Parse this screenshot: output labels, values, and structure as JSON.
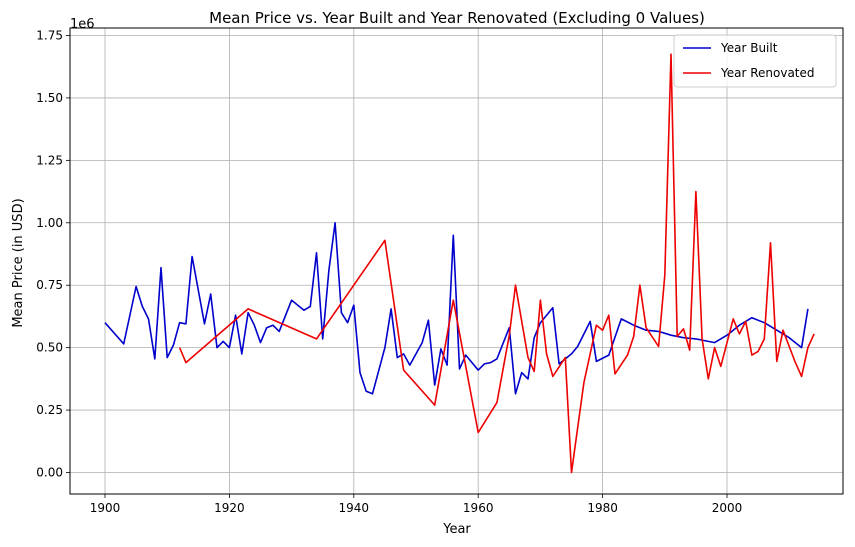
{
  "chart_data": {
    "type": "line",
    "title": "Mean Price vs. Year Built and Year Renovated (Excluding 0 Values)",
    "xlabel": "Year",
    "ylabel": "Mean Price (in USD)",
    "y_offset_label": "1e6",
    "xlim": [
      1900,
      2015
    ],
    "ylim": [
      0,
      1750000
    ],
    "x_ticks": [
      1900,
      1920,
      1940,
      1960,
      1980,
      2000
    ],
    "x_tick_labels": [
      "1900",
      "1920",
      "1940",
      "1960",
      "1980",
      "2000"
    ],
    "y_ticks": [
      0,
      250000,
      500000,
      750000,
      1000000,
      1250000,
      1500000,
      1750000
    ],
    "y_tick_labels": [
      "0.00",
      "0.25",
      "0.50",
      "0.75",
      "1.00",
      "1.25",
      "1.50",
      "1.75"
    ],
    "grid": true,
    "legend_position": "top-right",
    "series": [
      {
        "name": "Year Built",
        "color": "#0000cc",
        "x": [
          1900,
          1903,
          1905,
          1906,
          1907,
          1908,
          1909,
          1910,
          1911,
          1912,
          1913,
          1914,
          1916,
          1917,
          1918,
          1919,
          1920,
          1921,
          1922,
          1923,
          1924,
          1925,
          1926,
          1927,
          1928,
          1930,
          1932,
          1933,
          1934,
          1935,
          1936,
          1937,
          1938,
          1939,
          1940,
          1941,
          1942,
          1943,
          1945,
          1946,
          1947,
          1948,
          1949,
          1951,
          1952,
          1953,
          1954,
          1955,
          1956,
          1957,
          1958,
          1960,
          1961,
          1962,
          1963,
          1965,
          1966,
          1967,
          1968,
          1969,
          1970,
          1972,
          1973,
          1975,
          1976,
          1978,
          1979,
          1981,
          1983,
          1985,
          1987,
          1989,
          1991,
          1993,
          1995,
          1998,
          2000,
          2002,
          2004,
          2006,
          2008,
          2010,
          2012,
          2013
        ],
        "y": [
          600000,
          515000,
          745000,
          665000,
          615000,
          455000,
          820000,
          460000,
          510000,
          600000,
          595000,
          865000,
          595000,
          715000,
          500000,
          525000,
          500000,
          630000,
          475000,
          640000,
          590000,
          520000,
          580000,
          590000,
          565000,
          690000,
          650000,
          665000,
          880000,
          535000,
          810000,
          1000000,
          640000,
          600000,
          670000,
          400000,
          325000,
          315000,
          500000,
          655000,
          460000,
          475000,
          430000,
          520000,
          610000,
          350000,
          495000,
          430000,
          950000,
          415000,
          470000,
          410000,
          435000,
          440000,
          455000,
          580000,
          315000,
          400000,
          375000,
          540000,
          600000,
          660000,
          435000,
          475000,
          505000,
          605000,
          445000,
          470000,
          615000,
          590000,
          570000,
          565000,
          550000,
          540000,
          535000,
          520000,
          550000,
          590000,
          620000,
          600000,
          570000,
          540000,
          500000,
          655000
        ]
      },
      {
        "name": "Year Renovated",
        "color": "#ee0000",
        "x": [
          1912,
          1913,
          1923,
          1934,
          1945,
          1948,
          1953,
          1956,
          1960,
          1963,
          1965,
          1966,
          1968,
          1969,
          1970,
          1971,
          1972,
          1974,
          1975,
          1977,
          1979,
          1980,
          1981,
          1982,
          1984,
          1985,
          1986,
          1987,
          1989,
          1990,
          1991,
          1992,
          1993,
          1994,
          1995,
          1996,
          1997,
          1998,
          1999,
          2001,
          2002,
          2003,
          2004,
          2005,
          2006,
          2007,
          2008,
          2009,
          2011,
          2012,
          2013,
          2014
        ],
        "y": [
          500000,
          440000,
          655000,
          535000,
          930000,
          410000,
          270000,
          690000,
          160000,
          280000,
          550000,
          750000,
          460000,
          405000,
          690000,
          475000,
          385000,
          460000,
          0,
          360000,
          590000,
          570000,
          630000,
          395000,
          470000,
          545000,
          750000,
          580000,
          505000,
          790000,
          1675000,
          545000,
          575000,
          490000,
          1125000,
          535000,
          375000,
          500000,
          425000,
          615000,
          555000,
          605000,
          470000,
          485000,
          535000,
          920000,
          445000,
          570000,
          440000,
          385000,
          500000,
          555000
        ]
      }
    ]
  }
}
